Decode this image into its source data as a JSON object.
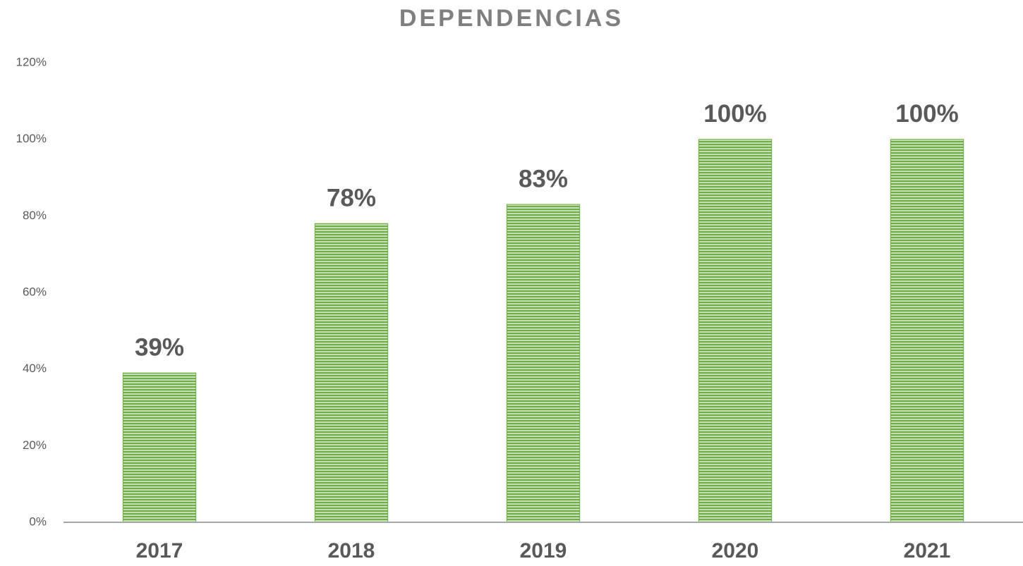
{
  "chart_data": {
    "type": "bar",
    "title": "DEPENDENCIAS",
    "categories": [
      "2017",
      "2018",
      "2019",
      "2020",
      "2021"
    ],
    "values": [
      39,
      78,
      83,
      100,
      100
    ],
    "value_labels": [
      "39%",
      "78%",
      "83%",
      "100%",
      "100%"
    ],
    "color": "#70ad47",
    "ylim": [
      0,
      120
    ],
    "yticks": [
      {
        "value": 0,
        "label": "0%"
      },
      {
        "value": 20,
        "label": "20%"
      },
      {
        "value": 40,
        "label": "40%"
      },
      {
        "value": 60,
        "label": "60%"
      },
      {
        "value": 80,
        "label": "80%"
      },
      {
        "value": 100,
        "label": "100%"
      },
      {
        "value": 120,
        "label": "120%"
      }
    ],
    "grid": false
  }
}
